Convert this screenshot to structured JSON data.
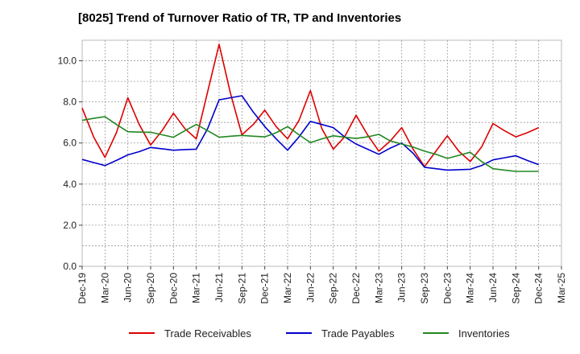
{
  "chart_data": {
    "type": "line",
    "title": "[8025]  Trend of Turnover Ratio of TR, TP and Inventories",
    "xlabel": "",
    "ylabel": "",
    "ylim": [
      0,
      11
    ],
    "yticks": [
      "0.0",
      "2.0",
      "4.0",
      "6.0",
      "8.0",
      "10.0"
    ],
    "ytick_values": [
      0,
      2,
      4,
      6,
      8,
      10
    ],
    "x_tick_labels": [
      "Dec-19",
      "Mar-20",
      "Jun-20",
      "Sep-20",
      "Dec-20",
      "Mar-21",
      "Jun-21",
      "Sep-21",
      "Dec-21",
      "Mar-22",
      "Jun-22",
      "Sep-22",
      "Dec-22",
      "Mar-23",
      "Jun-23",
      "Sep-23",
      "Dec-23",
      "Mar-24",
      "Jun-24",
      "Sep-24",
      "Dec-24",
      "Mar-25"
    ],
    "grid": true,
    "legend_position": "bottom",
    "series": [
      {
        "name": "Trade Receivables",
        "color": "#dd0000",
        "values": [
          7.7,
          6.3,
          5.3,
          6.5,
          8.2,
          6.9,
          5.9,
          6.6,
          7.45,
          6.7,
          6.2,
          8.5,
          10.8,
          8.4,
          6.4,
          6.9,
          7.6,
          6.8,
          6.2,
          7.1,
          8.55,
          6.7,
          5.7,
          6.3,
          7.35,
          6.4,
          5.6,
          6.1,
          6.75,
          5.7,
          4.85,
          5.6,
          6.35,
          5.6,
          5.1,
          5.8,
          6.95,
          6.6,
          6.3,
          6.5,
          6.75
        ]
      },
      {
        "name": "Trade Payables",
        "color": "#0000cc",
        "values": [
          5.2,
          5.05,
          4.9,
          5.15,
          5.42,
          5.58,
          5.78,
          5.72,
          5.65,
          5.68,
          5.7,
          6.7,
          8.1,
          8.2,
          8.3,
          7.5,
          6.8,
          6.2,
          5.65,
          6.3,
          7.05,
          6.9,
          6.75,
          6.3,
          5.95,
          5.7,
          5.45,
          5.75,
          6.0,
          5.5,
          4.82,
          4.75,
          4.68,
          4.7,
          4.72,
          4.9,
          5.18,
          5.28,
          5.38,
          5.15,
          4.95
        ]
      },
      {
        "name": "Inventories",
        "color": "#228822",
        "values": [
          7.1,
          7.2,
          7.28,
          6.9,
          6.55,
          6.53,
          6.52,
          6.4,
          6.28,
          6.6,
          6.9,
          6.6,
          6.28,
          6.33,
          6.37,
          6.33,
          6.3,
          6.5,
          6.8,
          6.4,
          6.02,
          6.2,
          6.35,
          6.28,
          6.22,
          6.3,
          6.42,
          6.1,
          5.95,
          5.8,
          5.6,
          5.45,
          5.25,
          5.4,
          5.55,
          5.1,
          4.75,
          4.68,
          4.62,
          4.62,
          4.62
        ]
      }
    ]
  }
}
